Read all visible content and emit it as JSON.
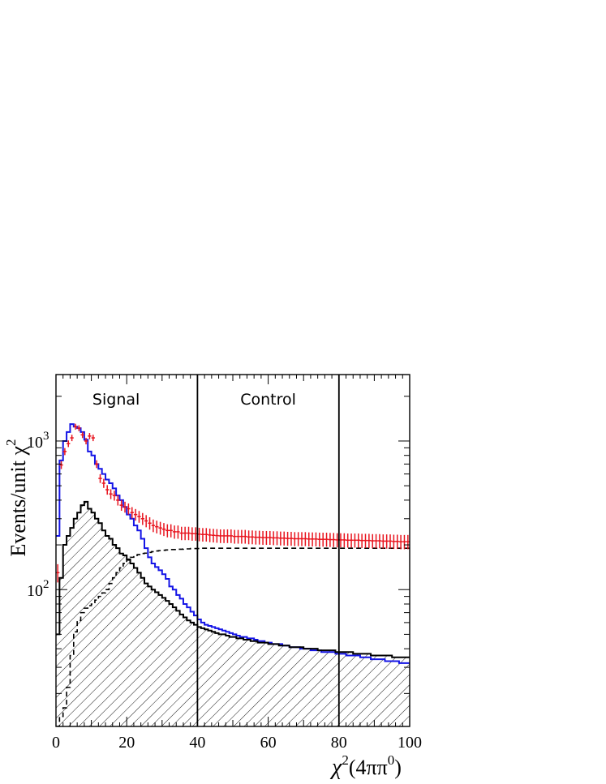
{
  "chart_data": {
    "type": "histogram",
    "x_axis": {
      "label_html": [
        "χ",
        "2",
        "(4ππ",
        "0",
        ")"
      ],
      "range": [
        0,
        100
      ],
      "ticks": [
        "0",
        "20",
        "40",
        "60",
        "80",
        "100"
      ],
      "tick_values": [
        0,
        20,
        40,
        60,
        80,
        100
      ]
    },
    "y_axis": {
      "label_parts": [
        "Events/unit χ",
        "2"
      ],
      "scale": "log",
      "range": [
        12,
        2800
      ],
      "ticks": [
        {
          "value": 100,
          "base": "10",
          "exp": "2"
        },
        {
          "value": 1000,
          "base": "10",
          "exp": "3"
        }
      ]
    },
    "regions": [
      {
        "label": "Signal",
        "x_center": 17
      },
      {
        "label": "Control",
        "x_center": 60
      }
    ],
    "region_lines": [
      40,
      80
    ],
    "bin_width": 1,
    "colors": {
      "data": "#e8141e",
      "blue": "#1414e6",
      "black": "#000000"
    },
    "series": [
      {
        "style": "red points with error bars",
        "values": [
          130,
          690,
          850,
          960,
          1050,
          1250,
          1220,
          1100,
          1000,
          1080,
          1050,
          700,
          560,
          520,
          470,
          440,
          430,
          400,
          370,
          360,
          350,
          330,
          320,
          310,
          300,
          290,
          280,
          270,
          265,
          260,
          255,
          250,
          250,
          245,
          245,
          240,
          240,
          240,
          238,
          238,
          236,
          235,
          235,
          233,
          232,
          231,
          230,
          230,
          230,
          230,
          228,
          228,
          228,
          228,
          226,
          226,
          225,
          225,
          224,
          224,
          224,
          223,
          223,
          222,
          222,
          221,
          221,
          220,
          220,
          220,
          220,
          219,
          219,
          219,
          218,
          218,
          218,
          217,
          217,
          216,
          216,
          216,
          215,
          215,
          215,
          215,
          214,
          214,
          214,
          213,
          213,
          213,
          212,
          212,
          212,
          211,
          211,
          210,
          210,
          210
        ]
      },
      {
        "style": "blue histogram",
        "values": [
          230,
          740,
          1000,
          1150,
          1300,
          1250,
          1220,
          1150,
          1020,
          850,
          800,
          700,
          650,
          600,
          550,
          520,
          480,
          430,
          400,
          360,
          320,
          300,
          270,
          250,
          220,
          190,
          165,
          150,
          142,
          135,
          127,
          118,
          105,
          100,
          92,
          87,
          80,
          76,
          71,
          67,
          63,
          60,
          58,
          57,
          56,
          55,
          54,
          53,
          52,
          51,
          50,
          49,
          48,
          48,
          47,
          47,
          46,
          45,
          45,
          44,
          44,
          43,
          43,
          43,
          42,
          42,
          41,
          41,
          41,
          40,
          40,
          40,
          39,
          39,
          39,
          38,
          38,
          38,
          38,
          37,
          37,
          37,
          36,
          36,
          36,
          36,
          35,
          35,
          35,
          34,
          34,
          34,
          34,
          33,
          33,
          33,
          33,
          32,
          32,
          32
        ]
      },
      {
        "style": "black hatched histogram",
        "values": [
          50,
          120,
          200,
          230,
          260,
          300,
          330,
          370,
          390,
          350,
          330,
          300,
          280,
          250,
          230,
          220,
          200,
          190,
          175,
          170,
          160,
          150,
          140,
          130,
          120,
          110,
          105,
          100,
          96,
          92,
          88,
          84,
          80,
          76,
          72,
          68,
          65,
          62,
          60,
          58,
          56,
          55,
          54,
          53,
          52,
          51,
          50,
          50,
          49,
          48,
          48,
          47,
          47,
          46,
          46,
          45,
          45,
          44,
          44,
          44,
          43,
          43,
          43,
          42,
          42,
          42,
          41,
          41,
          41,
          41,
          40,
          40,
          40,
          40,
          39,
          39,
          39,
          39,
          39,
          38,
          38,
          38,
          38,
          38,
          37,
          37,
          37,
          37,
          37,
          36,
          36,
          36,
          36,
          36,
          36,
          35,
          35,
          35,
          35,
          35
        ]
      },
      {
        "style": "black dashed histogram",
        "values": [
          12,
          14,
          16,
          22,
          36,
          52,
          62,
          70,
          75,
          78,
          80,
          85,
          90,
          95,
          100,
          110,
          120,
          130,
          140,
          150,
          158,
          165,
          170,
          172,
          175,
          176,
          178,
          180,
          182,
          183,
          184,
          185,
          186,
          186,
          187,
          187,
          188,
          188,
          189,
          189,
          189,
          190,
          190,
          190,
          190,
          190,
          190,
          190,
          190,
          190,
          190,
          190,
          190,
          190,
          190,
          190,
          190,
          190,
          190,
          190,
          190,
          190,
          190,
          190,
          190,
          190,
          190,
          190,
          190,
          190,
          190,
          190,
          190,
          190,
          190,
          190,
          190,
          190,
          190,
          190,
          190,
          190,
          190,
          190,
          190,
          190,
          190,
          190,
          190,
          190,
          190,
          190,
          190,
          190,
          190,
          190,
          190,
          190,
          190,
          190
        ]
      }
    ]
  }
}
